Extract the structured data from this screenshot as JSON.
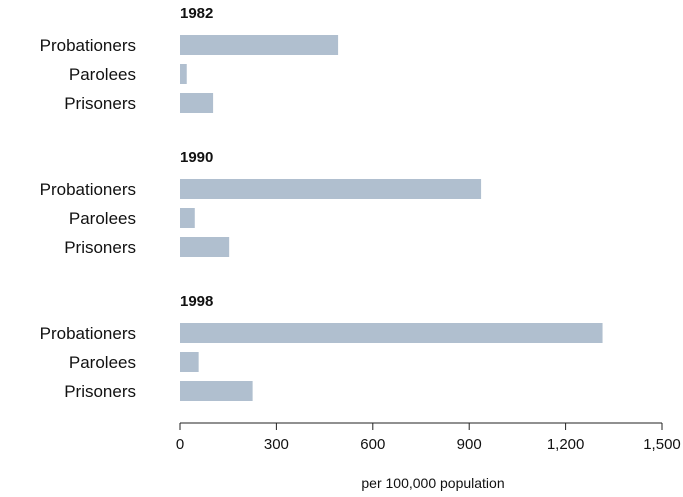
{
  "chart_data": {
    "type": "bar",
    "orientation": "horizontal",
    "groups": [
      {
        "title": "1982",
        "categories": [
          "Probationers",
          "Parolees",
          "Prisoners"
        ],
        "values": [
          492,
          21,
          103
        ]
      },
      {
        "title": "1990",
        "categories": [
          "Probationers",
          "Parolees",
          "Prisoners"
        ],
        "values": [
          937,
          46,
          153
        ]
      },
      {
        "title": "1998",
        "categories": [
          "Probationers",
          "Parolees",
          "Prisoners"
        ],
        "values": [
          1315,
          58,
          226
        ]
      }
    ],
    "xlabel": "per 100,000 population",
    "xlim": [
      0,
      1500
    ],
    "xticks": [
      0,
      300,
      600,
      900,
      1200,
      1500
    ],
    "xtick_labels": [
      "0",
      "300",
      "600",
      "900",
      "1,200",
      "1,500"
    ],
    "grid": false,
    "legend": "none",
    "bar_color": "#b0bfcf"
  }
}
